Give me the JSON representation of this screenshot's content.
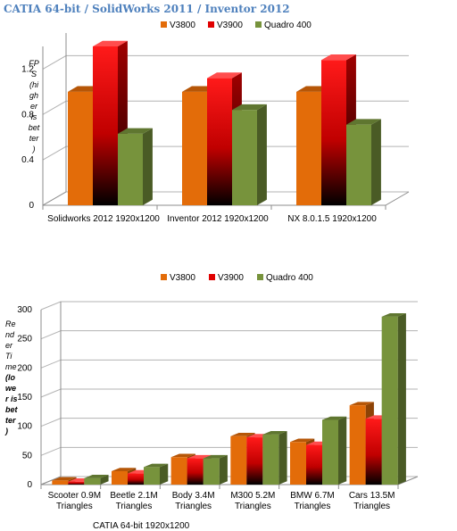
{
  "page": {
    "title": "CATIA 64-bit / SolidWorks 2011 / Inventor 2012"
  },
  "colors": {
    "V3800": "#e36c09",
    "V3900": "#ff0000",
    "Quadro 400": "#77933c"
  },
  "chart_data": [
    {
      "type": "bar",
      "title": "",
      "xlabel": "",
      "ylabel": "FPS (higher is better)",
      "ylim": [
        0,
        1.4
      ],
      "yticks": [
        "0",
        "0.4",
        "0.8",
        "1.2"
      ],
      "legend_position": "top",
      "categories": [
        "Solidworks 2012 1920x1200",
        "Inventor 2012 1920x1200",
        "NX 8.0.1.5 1920x1200"
      ],
      "series": [
        {
          "name": "V3800",
          "values": [
            1.0,
            1.0,
            1.0
          ]
        },
        {
          "name": "V3900",
          "values": [
            1.4,
            1.12,
            1.28
          ]
        },
        {
          "name": "Quadro 400",
          "values": [
            0.63,
            0.84,
            0.71
          ]
        }
      ]
    },
    {
      "type": "bar",
      "title": "",
      "xlabel": "CATIA 64-bit 1920x1200",
      "ylabel": "Render Time (lower is better)",
      "ylim": [
        0,
        300
      ],
      "yticks": [
        "0",
        "50",
        "100",
        "150",
        "200",
        "250",
        "300"
      ],
      "legend_position": "top",
      "categories": [
        "Scooter 0.9M Triangles",
        "Beetle 2.1M Triangles",
        "Body 3.4M Triangles",
        "M300 5.2M Triangles",
        "BMW 6.7M Triangles",
        "Cars 13.5M Triangles"
      ],
      "series": [
        {
          "name": "V3800",
          "values": [
            7,
            23,
            47,
            83,
            73,
            136
          ]
        },
        {
          "name": "V3900",
          "values": [
            5,
            19,
            45,
            81,
            68,
            113
          ]
        },
        {
          "name": "Quadro 400",
          "values": [
            11,
            30,
            45,
            86,
            111,
            288
          ]
        }
      ]
    }
  ]
}
